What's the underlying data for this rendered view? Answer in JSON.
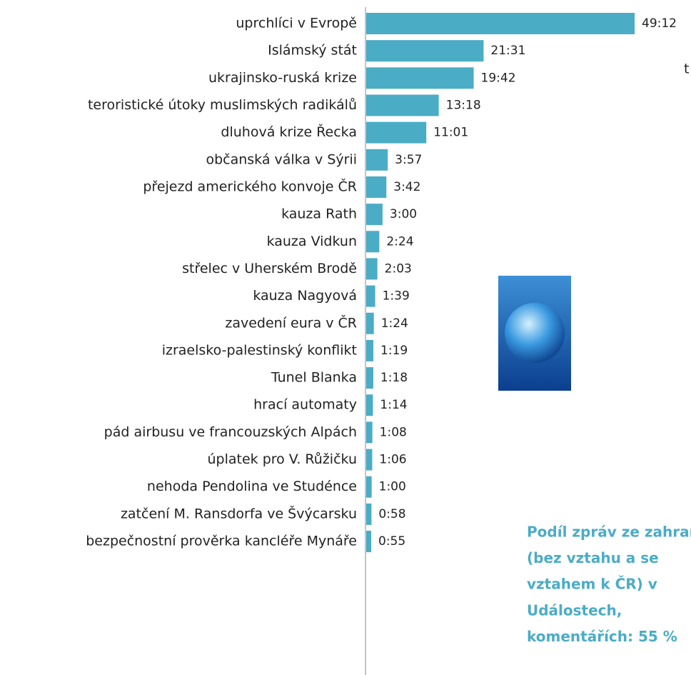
{
  "chart_data": {
    "type": "barh",
    "categories": [
      "uprchlíci v Evropě",
      "Islámský stát",
      "ukrajinsko-ruská krize",
      "teroristické útoky muslimských radikálů",
      "dluhová krize Řecka",
      "občanská válka v Sýrii",
      "přejezd amerického konvoje ČR",
      "kauza Rath",
      "kauza Vidkun",
      "střelec v Uherském Brodě",
      "kauza Nagyová",
      "zavedení eura v ČR",
      "izraelsko-palestinský konflikt",
      "Tunel Blanka",
      "hrací automaty",
      "pád airbusu ve francouzských Alpách",
      "úplatek pro V. Růžičku",
      "nehoda Pendolina ve Studénce",
      "zatčení M. Ransdorfa ve Švýcarsku",
      "bezpečnostní prověrka kancléře Mynáře"
    ],
    "values": [
      2952,
      1291,
      1182,
      798,
      661,
      237,
      222,
      180,
      144,
      123,
      99,
      84,
      79,
      78,
      74,
      68,
      66,
      60,
      58,
      55
    ],
    "value_labels": [
      "49:12",
      "21:31",
      "19:42",
      "13:18",
      "11:01",
      "3:57",
      "3:42",
      "3:00",
      "2:24",
      "2:03",
      "1:39",
      "1:24",
      "1:19",
      "1:18",
      "1:14",
      "1:08",
      "1:06",
      "1:00",
      "0:58",
      "0:55"
    ],
    "color": "#4bacc6",
    "side_text": "t",
    "annotation": [
      "Podíl zpráv ze zahraničí",
      "(bez vztahu a se",
      "vztahem k ČR) v",
      "Událostech,",
      "komentářích: 55 %"
    ],
    "annotation_color": "#4bacc6"
  }
}
